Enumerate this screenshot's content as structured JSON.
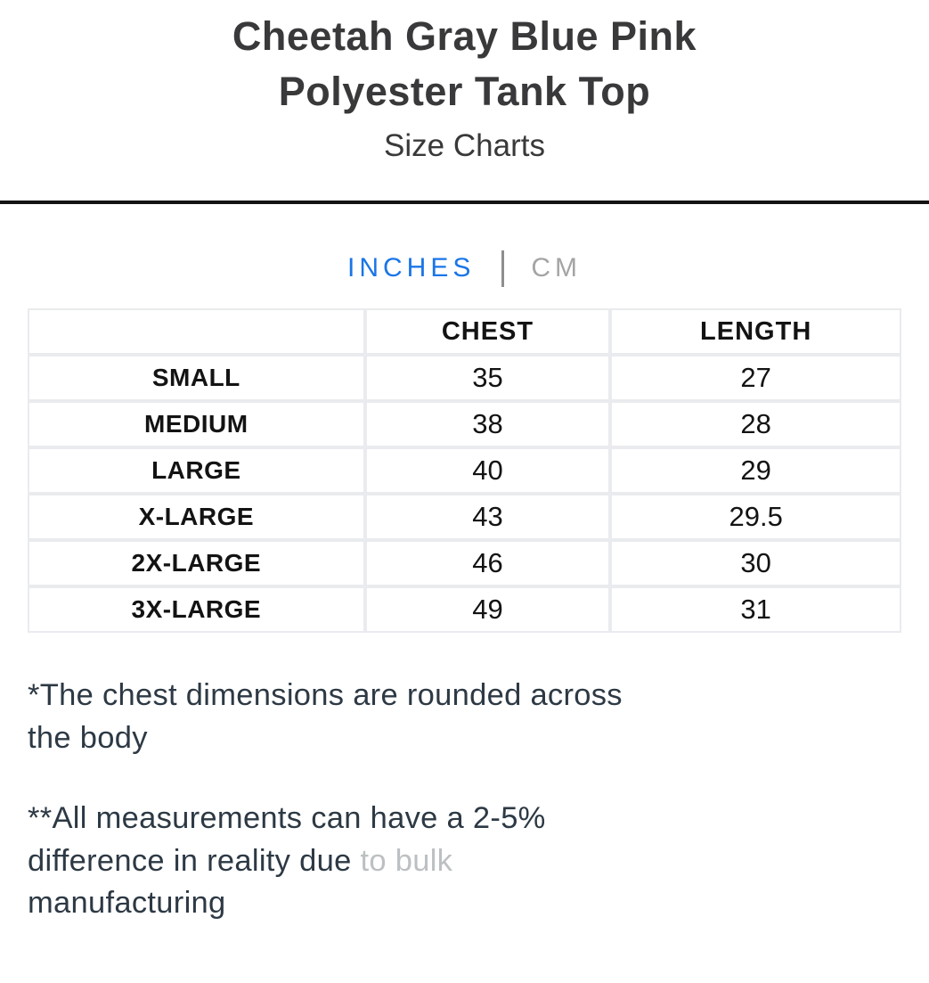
{
  "header": {
    "title_lines": [
      "Cheetah Gray Blue Pink",
      "Polyester Tank Top"
    ],
    "subtitle": "Size Charts"
  },
  "unit_tabs": {
    "active": "INCHES",
    "options": [
      {
        "label": "INCHES",
        "active": true
      },
      {
        "label": "CM",
        "active": false
      }
    ]
  },
  "size_table": {
    "columns": [
      "",
      "CHEST",
      "LENGTH"
    ],
    "rows": [
      {
        "size": "SMALL",
        "chest": "35",
        "length": "27"
      },
      {
        "size": "MEDIUM",
        "chest": "38",
        "length": "28"
      },
      {
        "size": "LARGE",
        "chest": "40",
        "length": "29"
      },
      {
        "size": "X-LARGE",
        "chest": "43",
        "length": "29.5"
      },
      {
        "size": "2X-LARGE",
        "chest": "46",
        "length": "30"
      },
      {
        "size": "3X-LARGE",
        "chest": "49",
        "length": "31"
      }
    ]
  },
  "notes": {
    "chest_note": {
      "full_text": "*The chest dimensions are rounded across the body",
      "lines": [
        [
          {
            "text": "*The chest dimensions are rounded across"
          }
        ],
        [
          {
            "text": "the body"
          }
        ]
      ]
    },
    "tolerance_note": {
      "full_text": "**All measurements can have a 2-5% difference in reality due to bulk manufacturing",
      "lines": [
        [
          {
            "text": "**All measurements can have a 2-5%"
          }
        ],
        [
          {
            "text": "difference in reality due "
          },
          {
            "text": "to bulk",
            "muted": true
          }
        ],
        [
          {
            "text": "manufacturing"
          }
        ]
      ]
    }
  },
  "colors": {
    "accent_blue": "#1a75e8",
    "inactive_tab_gray": "#a4a4a6",
    "tab_separator_gray": "#8e8e90",
    "title_dark": "#39393b",
    "table_text": "#131313",
    "table_border": "#e9ebee",
    "divider_black": "#141414",
    "note_dark": "#2d3944",
    "note_muted_gray": "#bcc0c2"
  }
}
